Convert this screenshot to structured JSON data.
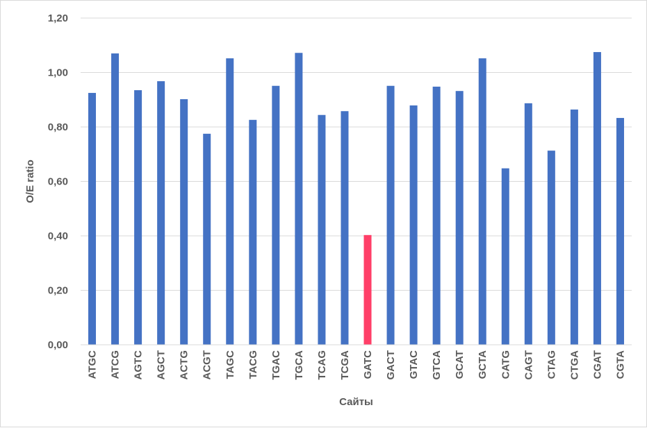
{
  "chart_data": {
    "type": "bar",
    "title": "",
    "xlabel": "Сайты",
    "ylabel": "O/E ratio",
    "ylim": [
      0,
      1.2
    ],
    "ytick_step": 0.2,
    "ytick_labels": [
      "0,00",
      "0,20",
      "0,40",
      "0,60",
      "0,80",
      "1,00",
      "1,20"
    ],
    "grid": true,
    "legend": "none",
    "bar_color": "#4472C4",
    "highlight_color": "#FF3F68",
    "highlight_category": "GATC",
    "categories": [
      "ATGC",
      "ATCG",
      "AGTC",
      "AGCT",
      "ACTG",
      "ACGT",
      "TAGC",
      "TACG",
      "TGAC",
      "TGCA",
      "TCAG",
      "TCGA",
      "GATC",
      "GACT",
      "GTAC",
      "GTCA",
      "GCAT",
      "GCTA",
      "CATG",
      "CAGT",
      "CTAG",
      "CTGA",
      "CGAT",
      "CGTA"
    ],
    "values": [
      0.925,
      1.07,
      0.935,
      0.968,
      0.902,
      0.775,
      1.052,
      0.826,
      0.951,
      1.072,
      0.844,
      0.858,
      0.403,
      0.951,
      0.879,
      0.948,
      0.932,
      1.052,
      0.648,
      0.887,
      0.713,
      0.864,
      1.075,
      0.833
    ]
  }
}
